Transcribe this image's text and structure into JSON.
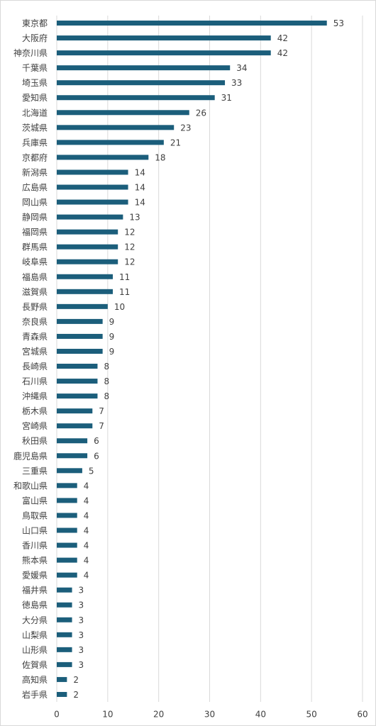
{
  "chart_data": {
    "type": "barh",
    "categories": [
      "東京都",
      "大阪府",
      "神奈川県",
      "千葉県",
      "埼玉県",
      "愛知県",
      "北海道",
      "茨城県",
      "兵庫県",
      "京都府",
      "新潟県",
      "広島県",
      "岡山県",
      "静岡県",
      "福岡県",
      "群馬県",
      "岐阜県",
      "福島県",
      "滋賀県",
      "長野県",
      "奈良県",
      "青森県",
      "宮城県",
      "長崎県",
      "石川県",
      "沖縄県",
      "栃木県",
      "宮崎県",
      "秋田県",
      "鹿児島県",
      "三重県",
      "和歌山県",
      "富山県",
      "鳥取県",
      "山口県",
      "香川県",
      "熊本県",
      "愛媛県",
      "福井県",
      "徳島県",
      "大分県",
      "山梨県",
      "山形県",
      "佐賀県",
      "高知県",
      "岩手県"
    ],
    "values": [
      53,
      42,
      42,
      34,
      33,
      31,
      26,
      23,
      21,
      18,
      14,
      14,
      14,
      13,
      12,
      12,
      12,
      11,
      11,
      10,
      9,
      9,
      9,
      8,
      8,
      8,
      7,
      7,
      6,
      6,
      5,
      4,
      4,
      4,
      4,
      4,
      4,
      4,
      3,
      3,
      3,
      3,
      3,
      3,
      2,
      2
    ],
    "color": "#1b5e7b",
    "xlim": [
      0,
      60
    ],
    "xticks": [
      0,
      10,
      20,
      30,
      40,
      50,
      60
    ],
    "grid": true
  }
}
